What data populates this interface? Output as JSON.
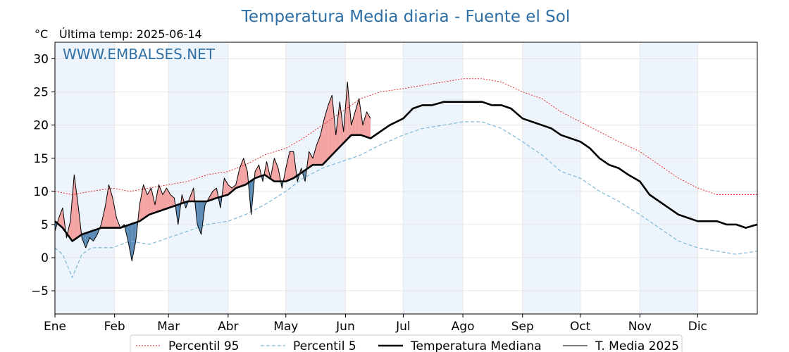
{
  "chart_data": {
    "type": "line",
    "title": "Temperatura Media diaria - Fuente el Sol",
    "unit_label": "°C",
    "last_temp_label": "Última temp: 2025-06-14",
    "watermark": "WWW.EMBALSES.NET",
    "ylim": [
      -8.5,
      32.5
    ],
    "yticks": [
      30,
      25,
      20,
      15,
      10,
      5,
      0,
      -5
    ],
    "ytick_labels": [
      "30",
      "25",
      "20",
      "15",
      "10",
      "5",
      "0",
      "−5"
    ],
    "xlim": [
      1,
      366
    ],
    "month_starts": [
      1,
      32,
      60,
      91,
      121,
      152,
      182,
      213,
      244,
      274,
      305,
      335
    ],
    "month_labels": [
      "Ene",
      "Feb",
      "Mar",
      "Abr",
      "May",
      "Jun",
      "Jul",
      "Ago",
      "Sep",
      "Oct",
      "Nov",
      "Dic"
    ],
    "grid": true,
    "legend_position": "bottom-center",
    "colors": {
      "title": "#2e6fa6",
      "p95": "#e41a1c",
      "p5": "#7fb8d6",
      "median": "#000000",
      "current": "#000000",
      "above_fill": "#f4a3a3",
      "below_fill": "#5b8bb5",
      "shade": "#eef4fb"
    },
    "series": [
      {
        "name": "Percentil 95",
        "day": [
          1,
          10,
          20,
          31,
          40,
          50,
          60,
          70,
          80,
          91,
          100,
          110,
          121,
          130,
          140,
          150,
          160,
          170,
          182,
          192,
          203,
          213,
          223,
          233,
          244,
          254,
          264,
          274,
          284,
          294,
          305,
          315,
          325,
          335,
          345,
          355,
          366
        ],
        "value": [
          10,
          9.5,
          10,
          10.5,
          10,
          10.5,
          11,
          11.5,
          12.5,
          13,
          14,
          15.5,
          16.5,
          18,
          20,
          22,
          24,
          25,
          25.5,
          26,
          26.5,
          27,
          27,
          26.5,
          25,
          24,
          22,
          20.5,
          19,
          17.5,
          16,
          14,
          12,
          10.5,
          9.5,
          9.5,
          9.5
        ]
      },
      {
        "name": "Percentil 5",
        "day": [
          1,
          5,
          10,
          15,
          20,
          31,
          40,
          50,
          60,
          70,
          80,
          91,
          100,
          110,
          121,
          130,
          140,
          150,
          160,
          170,
          182,
          192,
          203,
          213,
          223,
          233,
          244,
          254,
          264,
          274,
          284,
          294,
          305,
          315,
          325,
          335,
          345,
          355,
          366
        ],
        "value": [
          1.5,
          0.5,
          -3,
          0.5,
          1.5,
          1.5,
          2.5,
          2,
          3,
          4,
          5,
          5.5,
          6.5,
          8,
          10,
          12,
          13.5,
          14.5,
          15.5,
          17,
          18.5,
          19.5,
          20,
          20.5,
          20.5,
          19.5,
          17.5,
          15.5,
          13,
          12,
          10,
          8.5,
          6.5,
          4.5,
          2.5,
          1.5,
          1,
          0.5,
          1
        ]
      },
      {
        "name": "Temperatura Mediana",
        "day": [
          1,
          5,
          10,
          15,
          20,
          25,
          31,
          35,
          40,
          45,
          50,
          55,
          60,
          65,
          70,
          75,
          80,
          85,
          91,
          95,
          100,
          105,
          110,
          115,
          121,
          125,
          130,
          135,
          140,
          145,
          150,
          155,
          160,
          165,
          170,
          175,
          182,
          187,
          192,
          197,
          203,
          208,
          213,
          218,
          223,
          228,
          233,
          238,
          244,
          249,
          254,
          259,
          264,
          269,
          274,
          279,
          284,
          289,
          294,
          299,
          305,
          310,
          315,
          320,
          325,
          330,
          335,
          340,
          345,
          350,
          355,
          360,
          366
        ],
        "value": [
          5.5,
          4.5,
          2.5,
          3.5,
          4,
          4.5,
          4.5,
          4.5,
          5,
          5.5,
          6.5,
          7,
          7.5,
          8,
          8.5,
          8.5,
          8.5,
          9,
          9.5,
          10.5,
          11,
          12,
          12.5,
          11.5,
          11.5,
          12,
          13,
          14,
          14,
          15.5,
          17,
          18.5,
          18.5,
          18,
          19,
          20,
          21,
          22.5,
          23,
          23,
          23.5,
          23.5,
          23.5,
          23.5,
          23.5,
          23,
          23,
          22.5,
          21,
          20.5,
          20,
          19.5,
          18.5,
          18,
          17.5,
          16.5,
          15,
          14,
          13.5,
          12.5,
          11.5,
          9.5,
          8.5,
          7.5,
          6.5,
          6,
          5.5,
          5.5,
          5.5,
          5,
          5,
          4.5,
          5
        ]
      },
      {
        "name": "T. Media 2025",
        "day": [
          1,
          3,
          5,
          7,
          9,
          11,
          13,
          15,
          17,
          19,
          21,
          23,
          25,
          27,
          29,
          31,
          33,
          35,
          37,
          39,
          41,
          43,
          45,
          47,
          49,
          51,
          53,
          55,
          57,
          59,
          61,
          63,
          65,
          67,
          69,
          71,
          73,
          75,
          77,
          79,
          81,
          83,
          85,
          87,
          89,
          91,
          93,
          95,
          97,
          99,
          101,
          103,
          105,
          107,
          109,
          111,
          113,
          115,
          117,
          119,
          121,
          123,
          125,
          127,
          129,
          131,
          133,
          135,
          137,
          139,
          141,
          143,
          145,
          147,
          149,
          151,
          153,
          155,
          157,
          159,
          161,
          163,
          165
        ],
        "value": [
          4,
          6,
          7.5,
          3,
          5.5,
          12.5,
          8,
          3,
          1.5,
          3,
          2.5,
          3.5,
          5,
          7.5,
          11,
          9,
          6,
          4.5,
          5,
          2.5,
          -0.5,
          2.5,
          8,
          11,
          9.5,
          10.5,
          8,
          11,
          9.5,
          10.5,
          9.5,
          9,
          5,
          9.5,
          7.5,
          9,
          10.5,
          5,
          3.5,
          8,
          9,
          10,
          10.5,
          7.5,
          12,
          11,
          10.5,
          11,
          13.5,
          15,
          13,
          6.5,
          13,
          14,
          11.5,
          14.5,
          12,
          15,
          13.5,
          10.5,
          13.5,
          16,
          16,
          11.5,
          13.5,
          11.5,
          16,
          15,
          17,
          18.5,
          21,
          23,
          24.5,
          18.5,
          23.5,
          19,
          26.5,
          20,
          22,
          24,
          20,
          22,
          21
        ]
      }
    ]
  }
}
